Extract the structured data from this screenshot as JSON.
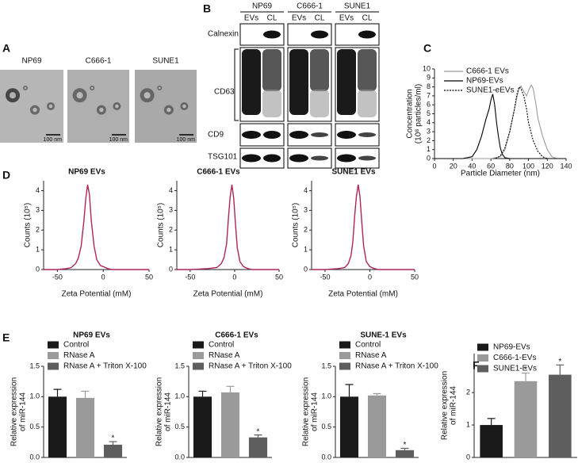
{
  "panel_labels": [
    "A",
    "B",
    "C",
    "D",
    "E",
    "F"
  ],
  "panel_a": {
    "images": [
      {
        "label": "NP69",
        "scale_bar": "100 nm"
      },
      {
        "label": "C666-1",
        "scale_bar": "100 nm"
      },
      {
        "label": "SUNE1",
        "scale_bar": "100 nm"
      }
    ]
  },
  "panel_b": {
    "columns": [
      {
        "label": "NP69",
        "lanes": [
          "EVs",
          "CL"
        ]
      },
      {
        "label": "C666-1",
        "lanes": [
          "EVs",
          "CL"
        ]
      },
      {
        "label": "SUNE1",
        "lanes": [
          "EVs",
          "CL"
        ]
      }
    ],
    "rows": [
      "Calnexin",
      "CD63",
      "CD9",
      "TSG101"
    ]
  },
  "chart_data": [
    {
      "type": "line",
      "y_label": [
        "Concentration",
        "(10⁸ particles/ml)"
      ],
      "x_label": "Particle Diameter (nm)",
      "xlim": [
        0,
        140
      ],
      "xticks": [
        0,
        20,
        40,
        60,
        80,
        100,
        120,
        140
      ],
      "ylim": [
        0,
        10
      ],
      "yticks": [
        0,
        1,
        2,
        3,
        4,
        5,
        6,
        7,
        8,
        9,
        10
      ],
      "legend": "upper left",
      "series": [
        {
          "name": "C666-1 EVs",
          "color": "#9a9a9a",
          "style": "solid",
          "x": [
            0,
            10,
            20,
            30,
            40,
            50,
            60,
            70,
            75,
            80,
            85,
            88,
            90,
            92,
            95,
            98,
            100,
            103,
            105,
            108,
            110,
            115,
            120,
            125,
            130,
            140
          ],
          "values": [
            0,
            0,
            0,
            0,
            0,
            0,
            0,
            0.2,
            1,
            3,
            5.5,
            7,
            7.8,
            8.1,
            7.5,
            7,
            7.6,
            8.2,
            7.8,
            6,
            4.5,
            2.5,
            1,
            0.2,
            0,
            0
          ]
        },
        {
          "name": "NP69-EVs",
          "color": "#000000",
          "style": "solid",
          "x": [
            0,
            10,
            20,
            30,
            40,
            45,
            50,
            55,
            58,
            60,
            62,
            64,
            66,
            68,
            70,
            72,
            75,
            80,
            90,
            100,
            110,
            120,
            130,
            140
          ],
          "values": [
            0,
            0,
            0,
            0,
            0.2,
            1,
            2.5,
            4.5,
            5.5,
            6.5,
            7.2,
            6,
            4,
            2.5,
            1.2,
            0.5,
            0.1,
            0,
            0,
            0,
            0,
            0,
            0,
            0
          ]
        },
        {
          "name": "SUNE1-eEVs",
          "color": "#000000",
          "style": "dotted",
          "x": [
            65,
            70,
            75,
            80,
            85,
            88,
            90,
            92,
            95,
            98,
            100,
            105,
            110,
            115,
            120
          ],
          "values": [
            0,
            0.3,
            1.2,
            3,
            5.5,
            7.3,
            8,
            7.8,
            7,
            5.5,
            4,
            2,
            0.8,
            0.2,
            0
          ]
        }
      ]
    },
    {
      "type": "line",
      "title": "NP69 EVs",
      "y_label": [
        "Counts (10⁵)"
      ],
      "x_label": "Zeta Potential (mM)",
      "color": "#b0245a",
      "xlim": [
        -65,
        50
      ],
      "xticks": [
        -50,
        0,
        50
      ],
      "ylim": [
        0,
        4.5
      ],
      "yticks": [
        0,
        1,
        2,
        3,
        4
      ],
      "x": [
        -65,
        -50,
        -40,
        -35,
        -30,
        -27,
        -24,
        -21,
        -19,
        -17,
        -15,
        -13,
        -10,
        -7,
        -3,
        0,
        5,
        10,
        20,
        30,
        50
      ],
      "values": [
        0,
        0,
        0.05,
        0.1,
        0.3,
        0.6,
        1.2,
        2.5,
        3.6,
        4.3,
        3.8,
        2.5,
        1.2,
        0.5,
        0.2,
        0.15,
        0.05,
        0,
        0,
        0,
        0
      ]
    },
    {
      "type": "line",
      "title": "C666-1 EVs",
      "y_label": [
        "Counts (10⁵)"
      ],
      "x_label": "Zeta Potential (mM)",
      "color": "#b0245a",
      "xlim": [
        -65,
        50
      ],
      "xticks": [
        -50,
        0,
        50
      ],
      "ylim": [
        0,
        4.5
      ],
      "yticks": [
        0,
        1,
        2,
        3,
        4
      ],
      "x": [
        -65,
        -50,
        -30,
        -20,
        -15,
        -12,
        -9,
        -7,
        -5,
        -3,
        -1,
        1,
        3,
        6,
        10,
        15,
        20,
        30,
        50
      ],
      "values": [
        0,
        0,
        0.05,
        0.1,
        0.3,
        0.6,
        1.3,
        2.6,
        3.7,
        4.3,
        3.6,
        2.3,
        1.1,
        0.4,
        0.15,
        0.05,
        0,
        0,
        0
      ]
    },
    {
      "type": "line",
      "title": "SUNE1 EVs",
      "y_label": [
        "Counts (10⁵)"
      ],
      "x_label": "Zeta Potential (mM)",
      "color": "#b0245a",
      "xlim": [
        -65,
        50
      ],
      "xticks": [
        -50,
        0,
        50
      ],
      "ylim": [
        0,
        4.5
      ],
      "yticks": [
        0,
        1,
        2,
        3,
        4
      ],
      "x": [
        -65,
        -50,
        -35,
        -28,
        -24,
        -21,
        -19,
        -17,
        -15,
        -13,
        -11,
        -9,
        -7,
        -4,
        0,
        5,
        10,
        20,
        50
      ],
      "values": [
        0,
        0,
        0.05,
        0.1,
        0.3,
        0.7,
        1.4,
        2.7,
        3.7,
        4.3,
        3.7,
        2.4,
        1.2,
        0.4,
        0.15,
        0.05,
        0,
        0,
        0
      ]
    },
    {
      "type": "bar",
      "title": "NP69 EVs",
      "y_label": [
        "Relative expression",
        "of miR-144"
      ],
      "categories": [
        "Control",
        "RNase A",
        "RNase A + Triton X-100"
      ],
      "colors": [
        "#1a1a1a",
        "#9a9a9a",
        "#5e5e5e"
      ],
      "values": [
        1.0,
        0.98,
        0.21
      ],
      "errors": [
        0.12,
        0.11,
        0.05
      ],
      "significance": [
        null,
        null,
        "*"
      ],
      "ylim": [
        0,
        1.5
      ],
      "yticks": [
        {
          "value": 0,
          "label": "0.0"
        },
        {
          "value": 0.5,
          "label": "0.5"
        },
        {
          "value": 1,
          "label": "1.0"
        },
        {
          "value": 1.5,
          "label": "1.5"
        }
      ]
    },
    {
      "type": "bar",
      "title": "C666-1 EVs",
      "y_label": [
        "Relative expression",
        "of miR-144"
      ],
      "categories": [
        "Control",
        "RNase A",
        "RNase A + Triton X-100"
      ],
      "colors": [
        "#1a1a1a",
        "#9a9a9a",
        "#5e5e5e"
      ],
      "values": [
        1.0,
        1.07,
        0.33
      ],
      "errors": [
        0.09,
        0.1,
        0.04
      ],
      "significance": [
        null,
        null,
        "*"
      ],
      "ylim": [
        0,
        1.5
      ],
      "yticks": [
        {
          "value": 0,
          "label": "0.0"
        },
        {
          "value": 0.5,
          "label": "0.5"
        },
        {
          "value": 1,
          "label": "1.0"
        },
        {
          "value": 1.5,
          "label": "1.5"
        }
      ]
    },
    {
      "type": "bar",
      "title": "SUNE-1 EVs",
      "y_label": [
        "Relative expression",
        "of miR-144"
      ],
      "categories": [
        "Control",
        "RNase A",
        "RNase A + Triton X-100"
      ],
      "colors": [
        "#1a1a1a",
        "#9a9a9a",
        "#5e5e5e"
      ],
      "values": [
        1.0,
        1.02,
        0.12
      ],
      "errors": [
        0.2,
        0.03,
        0.03
      ],
      "significance": [
        null,
        null,
        "*"
      ],
      "ylim": [
        0,
        1.5
      ],
      "yticks": [
        {
          "value": 0,
          "label": "0.0"
        },
        {
          "value": 0.5,
          "label": "0.5"
        },
        {
          "value": 1,
          "label": "1.0"
        },
        {
          "value": 1.5,
          "label": "1.5"
        }
      ]
    },
    {
      "type": "bar",
      "y_label": [
        "Relative expression",
        "of miR-144"
      ],
      "categories": [
        "NP69-EVs",
        "C666-1-EVs",
        "SUNE1-EVs"
      ],
      "colors": [
        "#1a1a1a",
        "#9a9a9a",
        "#5e5e5e"
      ],
      "values": [
        1.0,
        2.35,
        2.55
      ],
      "errors": [
        0.2,
        0.25,
        0.3
      ],
      "significance": [
        null,
        "*",
        "*"
      ],
      "ylim": [
        0,
        3.2
      ],
      "yticks": [
        0,
        1,
        2
      ]
    }
  ]
}
